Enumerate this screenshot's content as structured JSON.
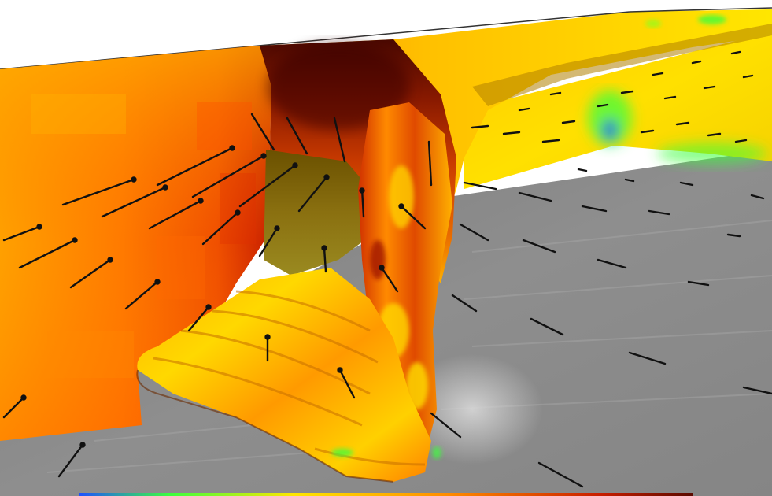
{
  "scene": {
    "kind": "cfd-flow-visualization",
    "elements": [
      "sky",
      "ground-plane",
      "side-wall",
      "back-wall",
      "scour-cavity",
      "velocity-arrows",
      "color-bar"
    ]
  },
  "colors": {
    "sky": "#ffffff",
    "ground": "#8c8c8c",
    "ground_light": "#b4b4b4",
    "high": "#ffe600",
    "mid": "#ff8c00",
    "low": "#c81e00",
    "min": "#5a0a00",
    "cool": "#3cff3c",
    "cold": "#1e50ff",
    "arrow": "#111111"
  }
}
